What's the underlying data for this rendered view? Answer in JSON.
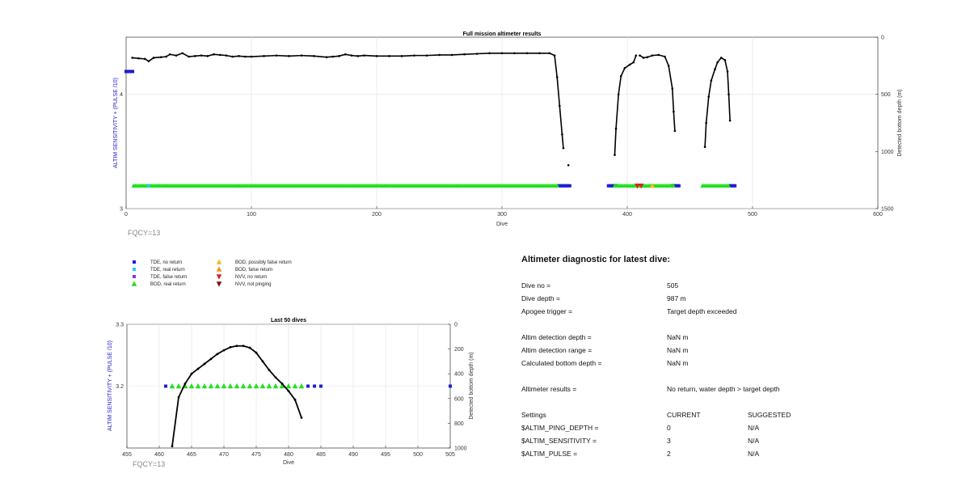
{
  "chart_data": [
    {
      "type": "scatter",
      "title": "Full mission altimeter results",
      "xlabel": "Dive",
      "ylabel_left": "ALTIM SENSITIVITY + (PULSE /10)",
      "ylabel_right": "Detected bottom depth (m)",
      "xlim": [
        0,
        600
      ],
      "ylim_left": [
        3,
        4.5
      ],
      "ylim_right_inverted": [
        0,
        1500
      ],
      "xticks": [
        "0",
        "100",
        "200",
        "300",
        "400",
        "500",
        "600"
      ],
      "yticks_left": [
        "3",
        "4"
      ],
      "yticks_right": [
        "0",
        "500",
        "1000",
        "1500"
      ],
      "grid": true,
      "annotation": "FQCY=13",
      "sensitivity_series": [
        {
          "name": "TDE, no return",
          "color": "#1f1fd0",
          "segments": [
            [
              0,
              6,
              4.2
            ],
            [
              345,
              355,
              3.2
            ],
            [
              385,
              392,
              3.2
            ],
            [
              436,
              442,
              3.2
            ],
            [
              482,
              487,
              3.2
            ]
          ]
        },
        {
          "name": "BOD, real return",
          "color": "#22e022",
          "segments": [
            [
              6,
              345,
              3.2
            ],
            [
              390,
              438,
              3.2
            ],
            [
              460,
              482,
              3.2
            ]
          ]
        },
        {
          "name": "TDE, real return",
          "color": "#22d0e8",
          "points": [
            [
              18,
              3.2
            ]
          ]
        },
        {
          "name": "NVV, no return",
          "color": "#e02020",
          "points": [
            [
              408,
              3.2
            ],
            [
              411,
              3.2
            ]
          ]
        },
        {
          "name": "BOD, possibly false return",
          "color": "#f0c020",
          "points": [
            [
              420,
              3.2
            ]
          ]
        }
      ],
      "depth_series": [
        {
          "name": "Detected bottom depth",
          "color": "#000000",
          "points": [
            [
              5,
              180
            ],
            [
              10,
              185
            ],
            [
              15,
              190
            ],
            [
              18,
              210
            ],
            [
              22,
              180
            ],
            [
              28,
              175
            ],
            [
              32,
              170
            ],
            [
              35,
              150
            ],
            [
              40,
              160
            ],
            [
              45,
              140
            ],
            [
              50,
              170
            ],
            [
              55,
              165
            ],
            [
              60,
              160
            ],
            [
              65,
              165
            ],
            [
              70,
              150
            ],
            [
              75,
              155
            ],
            [
              80,
              160
            ],
            [
              85,
              170
            ],
            [
              90,
              165
            ],
            [
              95,
              170
            ],
            [
              100,
              170
            ],
            [
              110,
              165
            ],
            [
              120,
              160
            ],
            [
              130,
              165
            ],
            [
              140,
              160
            ],
            [
              150,
              165
            ],
            [
              160,
              175
            ],
            [
              165,
              170
            ],
            [
              170,
              165
            ],
            [
              175,
              150
            ],
            [
              180,
              160
            ],
            [
              185,
              165
            ],
            [
              190,
              160
            ],
            [
              200,
              165
            ],
            [
              210,
              165
            ],
            [
              220,
              165
            ],
            [
              230,
              160
            ],
            [
              240,
              160
            ],
            [
              250,
              155
            ],
            [
              260,
              155
            ],
            [
              270,
              150
            ],
            [
              280,
              145
            ],
            [
              290,
              140
            ],
            [
              300,
              140
            ],
            [
              310,
              140
            ],
            [
              320,
              140
            ],
            [
              330,
              140
            ],
            [
              338,
              140
            ],
            [
              342,
              160
            ],
            [
              344,
              350
            ],
            [
              346,
              600
            ],
            [
              348,
              850
            ],
            [
              349,
              970
            ]
          ]
        },
        {
          "name": "Detected bottom depth",
          "color": "#000000",
          "points": [
            [
              353,
              1120
            ]
          ]
        },
        {
          "name": "Detected bottom depth",
          "color": "#000000",
          "points": [
            [
              390,
              1030
            ],
            [
              391,
              800
            ],
            [
              393,
              500
            ],
            [
              395,
              340
            ],
            [
              398,
              270
            ],
            [
              402,
              240
            ],
            [
              405,
              220
            ],
            [
              407,
              160
            ]
          ]
        },
        {
          "name": "Detected bottom depth",
          "color": "#000000",
          "points": [
            [
              410,
              160
            ],
            [
              413,
              180
            ],
            [
              416,
              175
            ],
            [
              420,
              160
            ],
            [
              425,
              155
            ],
            [
              430,
              170
            ],
            [
              433,
              250
            ],
            [
              436,
              450
            ],
            [
              437,
              650
            ],
            [
              438,
              820
            ]
          ]
        },
        {
          "name": "Detected bottom depth",
          "color": "#000000",
          "points": [
            [
              462,
              960
            ],
            [
              463,
              750
            ],
            [
              465,
              520
            ],
            [
              467,
              380
            ],
            [
              470,
              280
            ],
            [
              472,
              220
            ],
            [
              475,
              180
            ],
            [
              478,
              200
            ],
            [
              480,
              300
            ],
            [
              481,
              500
            ],
            [
              482,
              730
            ]
          ]
        }
      ]
    },
    {
      "type": "scatter",
      "title": "Last 50 dives",
      "xlabel": "Dive",
      "ylabel_left": "ALTIM SENSITIVITY + (PULSE /10)",
      "ylabel_right": "Detected bottom depth (m)",
      "xlim": [
        455,
        505
      ],
      "ylim_left": [
        3.1,
        3.3
      ],
      "ylim_right_inverted": [
        0,
        1000
      ],
      "xticks": [
        "455",
        "460",
        "465",
        "470",
        "475",
        "480",
        "485",
        "490",
        "495",
        "500",
        "505"
      ],
      "yticks_left": [
        "3.2",
        "3.3"
      ],
      "yticks_right": [
        "0",
        "200",
        "400",
        "600",
        "800",
        "1000"
      ],
      "grid": true,
      "annotation": "FQCY=13",
      "tde_no_return": {
        "color": "#1f1fd0",
        "x": [
          461,
          483,
          484,
          485,
          505
        ],
        "y": 3.2
      },
      "bod_real_return": {
        "color": "#22e022",
        "x": [
          462,
          463,
          464,
          465,
          466,
          467,
          468,
          469,
          470,
          471,
          472,
          473,
          474,
          475,
          476,
          477,
          478,
          479,
          480,
          481,
          482
        ],
        "y": 3.2
      },
      "depth": {
        "color": "#000000",
        "x": [
          462,
          463,
          464,
          465,
          466,
          467,
          468,
          469,
          470,
          471,
          472,
          473,
          474,
          475,
          476,
          477,
          478,
          479,
          480,
          481,
          482
        ],
        "y": [
          985,
          590,
          480,
          400,
          360,
          320,
          280,
          240,
          210,
          185,
          175,
          175,
          190,
          230,
          300,
          370,
          430,
          480,
          540,
          610,
          755
        ]
      }
    }
  ],
  "legend": [
    {
      "label": "TDE, no return",
      "color": "#1f1fd0",
      "marker": "square"
    },
    {
      "label": "TDE, real return",
      "color": "#22d0e8",
      "marker": "square"
    },
    {
      "label": "TDE, false return",
      "color": "#7f3fbf",
      "marker": "square"
    },
    {
      "label": "BOD, real return",
      "color": "#22e022",
      "marker": "triangle-up"
    },
    {
      "label": "BOD, possibly false return",
      "color": "#f0c020",
      "marker": "triangle-up"
    },
    {
      "label": "BOD, false return",
      "color": "#f09020",
      "marker": "triangle-up"
    },
    {
      "label": "NVV, no return",
      "color": "#e02020",
      "marker": "triangle-down"
    },
    {
      "label": "NVV, not pinging",
      "color": "#801010",
      "marker": "triangle-down"
    }
  ],
  "diagnostic": {
    "title": "Altimeter diagnostic for latest dive:",
    "dive_no_label": "Dive no =",
    "dive_no_value": "505",
    "dive_depth_label": "Dive depth =",
    "dive_depth_value": "987 m",
    "apogee_label": "Apogee trigger =",
    "apogee_value": "Target depth exceeded",
    "detect_depth_label": "Altim detection depth =",
    "detect_depth_value": "NaN m",
    "detect_range_label": "Altim detection range =",
    "detect_range_value": "NaN m",
    "calc_depth_label": "Calculated bottom depth =",
    "calc_depth_value": "NaN m",
    "results_label": "Altimeter results =",
    "results_value": "No return, water depth > target depth",
    "settings_label": "Settings",
    "current_label": "CURRENT",
    "suggested_label": "SUGGESTED",
    "ping_label": "$ALTIM_PING_DEPTH =",
    "ping_current": "0",
    "ping_suggested": "N/A",
    "sens_label": "$ALTIM_SENSITIVITY =",
    "sens_current": "3",
    "sens_suggested": "N/A",
    "pulse_label": "$ALTIM_PULSE =",
    "pulse_current": "2",
    "pulse_suggested": "N/A"
  }
}
